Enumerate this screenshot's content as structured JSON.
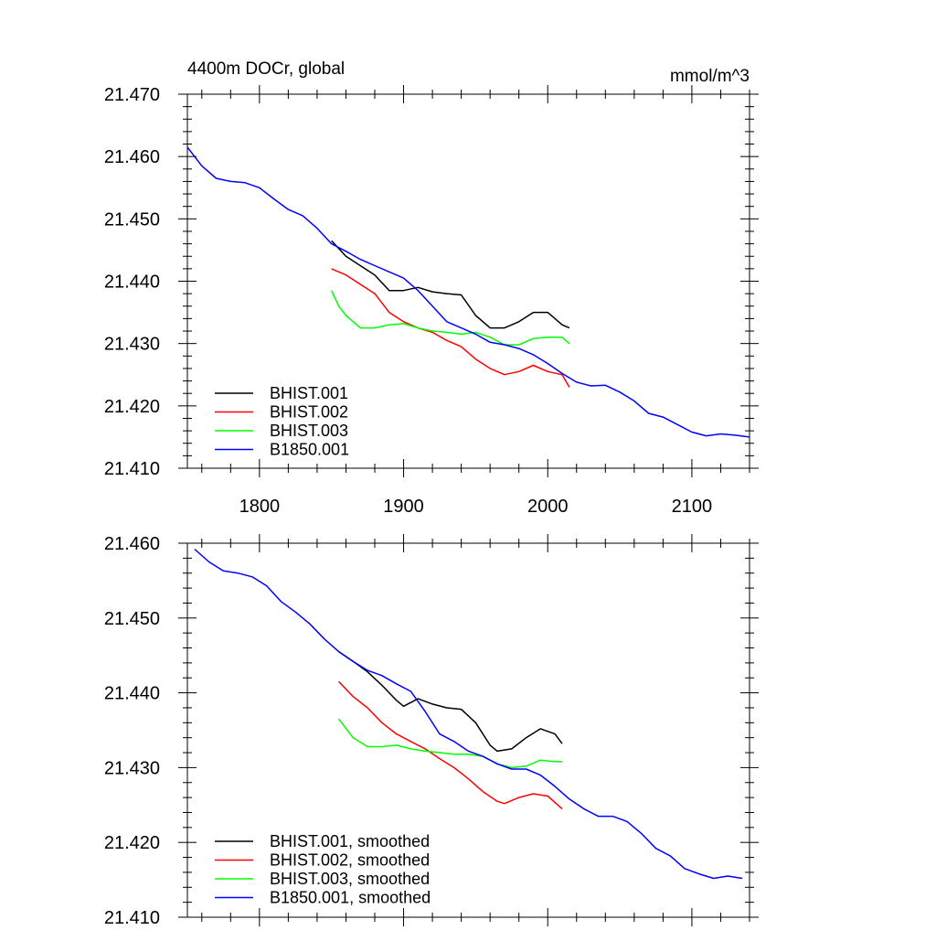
{
  "chart_data": [
    {
      "type": "line",
      "title": "4400m DOCr, global",
      "units": "mmol/m^3",
      "xlim": [
        1750,
        2140
      ],
      "ylim": [
        21.41,
        21.47
      ],
      "xticks": [
        1800,
        1900,
        2000,
        2100
      ],
      "xtick_labels": [
        "1800",
        "1900",
        "2000",
        "2100"
      ],
      "yticks": [
        21.41,
        21.42,
        21.43,
        21.44,
        21.45,
        21.46,
        21.47
      ],
      "ytick_labels": [
        "21.410",
        "21.420",
        "21.430",
        "21.440",
        "21.450",
        "21.460",
        "21.470"
      ],
      "legend_position": "bottom-left",
      "series": [
        {
          "name": "BHIST.001",
          "color": "#000000",
          "x": [
            1850,
            1860,
            1870,
            1880,
            1890,
            1900,
            1910,
            1920,
            1930,
            1940,
            1950,
            1960,
            1970,
            1980,
            1990,
            2000,
            2010,
            2015
          ],
          "y": [
            21.4465,
            21.444,
            21.4425,
            21.441,
            21.4385,
            21.4385,
            21.439,
            21.4383,
            21.438,
            21.4378,
            21.4345,
            21.4325,
            21.4325,
            21.4335,
            21.435,
            21.435,
            21.433,
            21.4325
          ]
        },
        {
          "name": "BHIST.002",
          "color": "#ff0000",
          "x": [
            1850,
            1860,
            1870,
            1880,
            1890,
            1900,
            1910,
            1920,
            1930,
            1940,
            1950,
            1960,
            1970,
            1980,
            1990,
            2000,
            2010,
            2015
          ],
          "y": [
            21.442,
            21.441,
            21.4395,
            21.438,
            21.435,
            21.4335,
            21.4325,
            21.4318,
            21.4305,
            21.4295,
            21.4275,
            21.426,
            21.425,
            21.4255,
            21.4265,
            21.4255,
            21.425,
            21.423
          ]
        },
        {
          "name": "BHIST.003",
          "color": "#00ff00",
          "x": [
            1850,
            1855,
            1860,
            1870,
            1880,
            1890,
            1900,
            1910,
            1920,
            1930,
            1940,
            1950,
            1960,
            1970,
            1980,
            1990,
            2000,
            2010,
            2015
          ],
          "y": [
            21.4385,
            21.436,
            21.4345,
            21.4325,
            21.4325,
            21.433,
            21.4332,
            21.4325,
            21.432,
            21.4318,
            21.4315,
            21.4318,
            21.431,
            21.4298,
            21.4298,
            21.4308,
            21.431,
            21.431,
            21.43
          ]
        },
        {
          "name": "B1850.001",
          "color": "#0000ff",
          "x": [
            1750,
            1760,
            1770,
            1780,
            1790,
            1800,
            1810,
            1820,
            1830,
            1840,
            1850,
            1860,
            1870,
            1880,
            1890,
            1900,
            1910,
            1920,
            1930,
            1940,
            1950,
            1960,
            1970,
            1980,
            1990,
            2000,
            2010,
            2020,
            2030,
            2040,
            2050,
            2060,
            2070,
            2080,
            2090,
            2100,
            2110,
            2120,
            2130,
            2140
          ],
          "y": [
            21.4615,
            21.4585,
            21.4565,
            21.456,
            21.4558,
            21.455,
            21.4532,
            21.4515,
            21.4505,
            21.4485,
            21.446,
            21.4448,
            21.4435,
            21.4425,
            21.4415,
            21.4405,
            21.4385,
            21.436,
            21.4335,
            21.4325,
            21.4315,
            21.4302,
            21.4298,
            21.4292,
            21.4282,
            21.4268,
            21.4252,
            21.4238,
            21.4232,
            21.4233,
            21.4222,
            21.4208,
            21.4188,
            21.4182,
            21.417,
            21.4158,
            21.4152,
            21.4155,
            21.4153,
            21.415
          ]
        }
      ]
    },
    {
      "type": "line",
      "xlim": [
        1750,
        2140
      ],
      "ylim": [
        21.41,
        21.46
      ],
      "xticks": [
        1800,
        1900,
        2000,
        2100
      ],
      "xtick_labels": [],
      "yticks": [
        21.41,
        21.42,
        21.43,
        21.44,
        21.45,
        21.46
      ],
      "ytick_labels": [
        "21.410",
        "21.420",
        "21.430",
        "21.440",
        "21.450",
        "21.460"
      ],
      "legend_position": "bottom-left",
      "series": [
        {
          "name": "BHIST.001, smoothed",
          "color": "#000000",
          "x": [
            1855,
            1865,
            1875,
            1885,
            1895,
            1900,
            1910,
            1920,
            1930,
            1940,
            1950,
            1960,
            1965,
            1975,
            1985,
            1995,
            2005,
            2010
          ],
          "y": [
            21.4455,
            21.4442,
            21.4428,
            21.441,
            21.439,
            21.4382,
            21.4392,
            21.4385,
            21.438,
            21.4378,
            21.436,
            21.433,
            21.4322,
            21.4325,
            21.434,
            21.4352,
            21.4345,
            21.4332
          ]
        },
        {
          "name": "BHIST.002, smoothed",
          "color": "#ff0000",
          "x": [
            1855,
            1865,
            1875,
            1885,
            1895,
            1905,
            1915,
            1925,
            1935,
            1945,
            1955,
            1965,
            1970,
            1980,
            1990,
            2000,
            2010
          ],
          "y": [
            21.4415,
            21.4395,
            21.438,
            21.436,
            21.4345,
            21.4335,
            21.4325,
            21.4312,
            21.43,
            21.4285,
            21.4268,
            21.4255,
            21.4252,
            21.426,
            21.4265,
            21.4262,
            21.4245
          ]
        },
        {
          "name": "BHIST.003, smoothed",
          "color": "#00ff00",
          "x": [
            1855,
            1865,
            1875,
            1885,
            1895,
            1905,
            1915,
            1925,
            1935,
            1945,
            1955,
            1965,
            1975,
            1985,
            1995,
            2005,
            2010
          ],
          "y": [
            21.4365,
            21.434,
            21.4328,
            21.4328,
            21.433,
            21.4325,
            21.4322,
            21.432,
            21.4318,
            21.4318,
            21.4315,
            21.4305,
            21.43,
            21.4302,
            21.431,
            21.4308,
            21.4308
          ]
        },
        {
          "name": "B1850.001, smoothed",
          "color": "#0000ff",
          "x": [
            1755,
            1765,
            1775,
            1785,
            1795,
            1805,
            1815,
            1825,
            1835,
            1845,
            1855,
            1865,
            1875,
            1885,
            1895,
            1905,
            1915,
            1925,
            1935,
            1945,
            1955,
            1965,
            1975,
            1985,
            1995,
            2005,
            2015,
            2025,
            2035,
            2045,
            2055,
            2065,
            2075,
            2085,
            2095,
            2105,
            2115,
            2125,
            2135
          ],
          "y": [
            21.4592,
            21.4575,
            21.4563,
            21.456,
            21.4555,
            21.4543,
            21.4522,
            21.4508,
            21.4492,
            21.4472,
            21.4455,
            21.4442,
            21.443,
            21.4423,
            21.4412,
            21.4402,
            21.4375,
            21.4345,
            21.4335,
            21.4322,
            21.4315,
            21.4305,
            21.4298,
            21.4298,
            21.429,
            21.4275,
            21.4258,
            21.4245,
            21.4235,
            21.4235,
            21.4228,
            21.4212,
            21.4192,
            21.4182,
            21.4165,
            21.4158,
            21.4152,
            21.4155,
            21.4152
          ]
        }
      ]
    }
  ]
}
